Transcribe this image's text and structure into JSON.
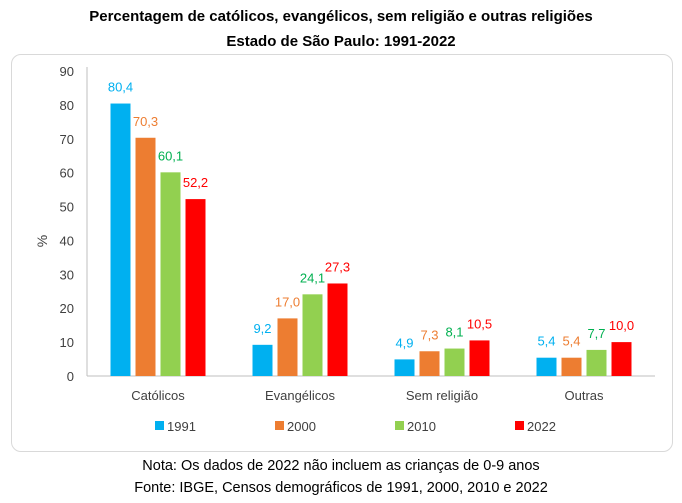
{
  "header": {
    "title": "Percentagem de católicos, evangélicos, sem religião e outras religiões",
    "subtitle": "Estado de São Paulo: 1991-2022"
  },
  "footer": {
    "note": "Nota: Os dados de 2022 não incluem as crianças de 0-9 anos",
    "source": "Fonte: IBGE, Censos demográficos de 1991, 2000, 2010 e 2022"
  },
  "chart_data": {
    "type": "bar",
    "title": "Percentagem de católicos, evangélicos, sem religião e outras religiões — Estado de São Paulo: 1991-2022",
    "xlabel": "",
    "ylabel": "%",
    "ylim": [
      0,
      90
    ],
    "yticks": [
      0,
      10,
      20,
      30,
      40,
      50,
      60,
      70,
      80,
      90
    ],
    "grid": false,
    "legend_position": "bottom",
    "categories": [
      "Católicos",
      "Evangélicos",
      "Sem religião",
      "Outras"
    ],
    "series": [
      {
        "name": "1991",
        "color": "#00b0f0",
        "values": [
          80.4,
          9.2,
          4.9,
          5.4
        ],
        "labels": [
          "80,4",
          "9,2",
          "4,9",
          "5,4"
        ]
      },
      {
        "name": "2000",
        "color": "#ed7d31",
        "values": [
          70.3,
          17.0,
          7.3,
          5.4
        ],
        "labels": [
          "70,3",
          "17,0",
          "7,3",
          "5,4"
        ]
      },
      {
        "name": "2010",
        "color": "#92d050",
        "values": [
          60.1,
          24.1,
          8.1,
          7.7
        ],
        "labels": [
          "60,1",
          "24,1",
          "8,1",
          "7,7"
        ]
      },
      {
        "name": "2022",
        "color": "#ff0000",
        "values": [
          52.2,
          27.3,
          10.5,
          10.0
        ],
        "labels": [
          "52,2",
          "27,3",
          "10,5",
          "10,0"
        ]
      }
    ],
    "label_colors": [
      "#00b0f0",
      "#ed7d31",
      "#00b050",
      "#ff0000"
    ]
  }
}
